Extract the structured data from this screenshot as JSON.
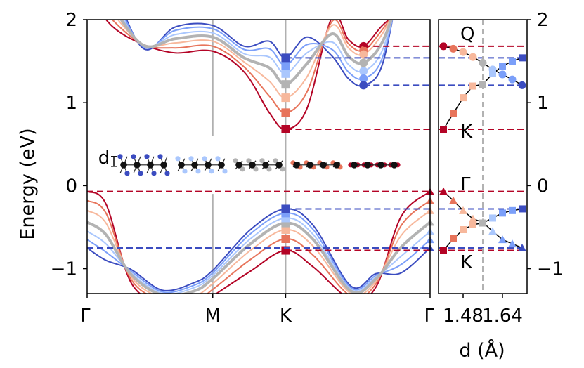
{
  "chart_data": [
    {
      "type": "line",
      "panel": "band-structure",
      "ylabel": "Energy (eV)",
      "xlabel": "",
      "ylim": [
        -1.3,
        2.0
      ],
      "yticks": [
        {
          "value": 2,
          "label": "2"
        },
        {
          "value": 1,
          "label": "1"
        },
        {
          "value": 0,
          "label": "0"
        },
        {
          "value": -1,
          "label": "−1"
        }
      ],
      "kpoints": [
        {
          "x": 0.0,
          "label": "Γ"
        },
        {
          "x": 1.0,
          "label": "M"
        },
        {
          "x": 1.58,
          "label": "K"
        },
        {
          "x": 2.73,
          "label": "Γ"
        }
      ],
      "xrange": [
        0,
        2.73
      ],
      "grid": false,
      "series_colors": [
        "#b40426",
        "#e7745b",
        "#f7b89c",
        "#b3b3b3",
        "#aac7fd",
        "#7b9ff9",
        "#3b4cc0"
      ],
      "reference_series_index": 3,
      "series": [
        {
          "cbm_at_K": 0.68,
          "vbm_at_K": -0.78,
          "vbm_at_Gamma": -0.07,
          "cb_Q_min": 1.68,
          "cbm_M": 1.62,
          "cb_Gamma_end": 2.12,
          "vb_M": -1.33,
          "vb_bottom": -1.42
        },
        {
          "cbm_at_K": 0.88,
          "vbm_at_K": -0.64,
          "vbm_at_Gamma": -0.18,
          "cb_Q_min": 1.63,
          "cbm_M": 1.68,
          "cb_Gamma_end": 2.2,
          "vb_M": -1.25,
          "vb_bottom": -1.38
        },
        {
          "cbm_at_K": 1.06,
          "vbm_at_K": -0.53,
          "vbm_at_Gamma": -0.3,
          "cb_Q_min": 1.58,
          "cbm_M": 1.74,
          "cb_Gamma_end": 2.28,
          "vb_M": -1.18,
          "vb_bottom": -1.35
        },
        {
          "cbm_at_K": 1.22,
          "vbm_at_K": -0.45,
          "vbm_at_Gamma": -0.44,
          "cb_Q_min": 1.48,
          "cbm_M": 1.79,
          "cb_Gamma_end": 2.35,
          "vb_M": -1.12,
          "vb_bottom": -1.32
        },
        {
          "cbm_at_K": 1.35,
          "vbm_at_K": -0.39,
          "vbm_at_Gamma": -0.55,
          "cb_Q_min": 1.38,
          "cbm_M": 1.84,
          "cb_Gamma_end": 2.42,
          "vb_M": -1.08,
          "vb_bottom": -1.3
        },
        {
          "cbm_at_K": 1.45,
          "vbm_at_K": -0.33,
          "vbm_at_Gamma": -0.65,
          "cb_Q_min": 1.29,
          "cbm_M": 1.89,
          "cb_Gamma_end": 2.5,
          "vb_M": -1.05,
          "vb_bottom": -1.28
        },
        {
          "cbm_at_K": 1.54,
          "vbm_at_K": -0.28,
          "vbm_at_Gamma": -0.75,
          "cb_Q_min": 1.21,
          "cbm_M": 1.93,
          "cb_Gamma_end": 2.58,
          "vb_M": -1.02,
          "vb_bottom": -1.26
        }
      ],
      "dashed_levels": [
        {
          "y": 1.68,
          "color": "#b40426"
        },
        {
          "y": 1.54,
          "color": "#3b4cc0"
        },
        {
          "y": 1.21,
          "color": "#3b4cc0"
        },
        {
          "y": 0.68,
          "color": "#b40426"
        },
        {
          "y": -0.07,
          "color": "#b40426"
        },
        {
          "y": -0.28,
          "color": "#3b4cc0"
        },
        {
          "y": -0.75,
          "color": "#3b4cc0"
        },
        {
          "y": -0.78,
          "color": "#b40426"
        }
      ],
      "inset": {
        "label": "d",
        "structures": [
          "#3b4cc0",
          "#aac7fd",
          "#b3b3b3",
          "#e7745b",
          "#b40426"
        ]
      }
    },
    {
      "type": "line",
      "panel": "band-edges-vs-d",
      "xlabel": "d (Å)",
      "ylim": [
        -1.3,
        2.0
      ],
      "xlim": [
        1.38,
        1.74
      ],
      "xticks": [
        {
          "value": 1.48,
          "label": "1.48"
        },
        {
          "value": 1.64,
          "label": "1.64"
        }
      ],
      "vline": 1.56,
      "d_values": [
        1.4,
        1.44,
        1.48,
        1.52,
        1.56,
        1.6,
        1.64,
        1.68,
        1.72
      ],
      "annotations": [
        "Q",
        "K",
        "Γ",
        "K"
      ],
      "curves": [
        {
          "name": "Q",
          "marker": "circle",
          "values": [
            1.68,
            1.65,
            1.61,
            1.55,
            1.48,
            1.4,
            1.34,
            1.28,
            1.21
          ]
        },
        {
          "name": "K",
          "marker": "square",
          "values": [
            0.68,
            0.87,
            1.06,
            1.2,
            1.22,
            1.35,
            1.44,
            1.5,
            1.54
          ]
        },
        {
          "name": "Γ",
          "marker": "triangle",
          "values": [
            -0.07,
            -0.18,
            -0.3,
            -0.4,
            -0.44,
            -0.55,
            -0.65,
            -0.7,
            -0.75
          ]
        },
        {
          "name": "K",
          "marker": "square",
          "values": [
            -0.78,
            -0.64,
            -0.53,
            -0.47,
            -0.45,
            -0.39,
            -0.33,
            -0.3,
            -0.28
          ]
        }
      ]
    }
  ]
}
